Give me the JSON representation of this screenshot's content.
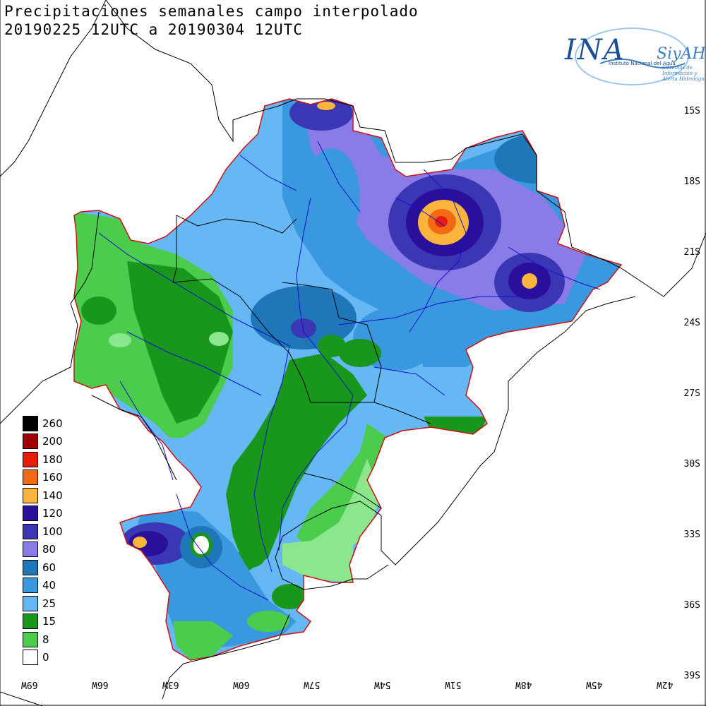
{
  "title_line1": "Precipitaciones semanales campo interpolado",
  "title_line2": "20190225 12UTC a 20190304 12UTC",
  "logo": {
    "name": "INA",
    "program": "SiyAH",
    "institution": "Instituto Nacional del Agua",
    "subtitle": "Sistemas de Información y Alerta Hidrológico"
  },
  "lat_labels": [
    "15S",
    "18S",
    "21S",
    "24S",
    "27S",
    "30S",
    "33S",
    "36S",
    "39S"
  ],
  "lon_labels": [
    "69W",
    "66W",
    "63W",
    "60W",
    "57W",
    "54W",
    "51W",
    "48W",
    "45W",
    "42W"
  ],
  "legend": [
    {
      "value": "260",
      "color": "#000000"
    },
    {
      "value": "200",
      "color": "#a00000"
    },
    {
      "value": "180",
      "color": "#e61c0c"
    },
    {
      "value": "160",
      "color": "#f26a14"
    },
    {
      "value": "140",
      "color": "#fbb43c"
    },
    {
      "value": "120",
      "color": "#2a0f9c"
    },
    {
      "value": "100",
      "color": "#3a36b4"
    },
    {
      "value": "80",
      "color": "#8a7ce6"
    },
    {
      "value": "60",
      "color": "#1f76b8"
    },
    {
      "value": "40",
      "color": "#3a98de"
    },
    {
      "value": "25",
      "color": "#66b8f4"
    },
    {
      "value": "15",
      "color": "#19961c"
    },
    {
      "value": "8",
      "color": "#4ccc4c"
    },
    {
      "value": "0",
      "color": "#ffffff"
    }
  ]
}
